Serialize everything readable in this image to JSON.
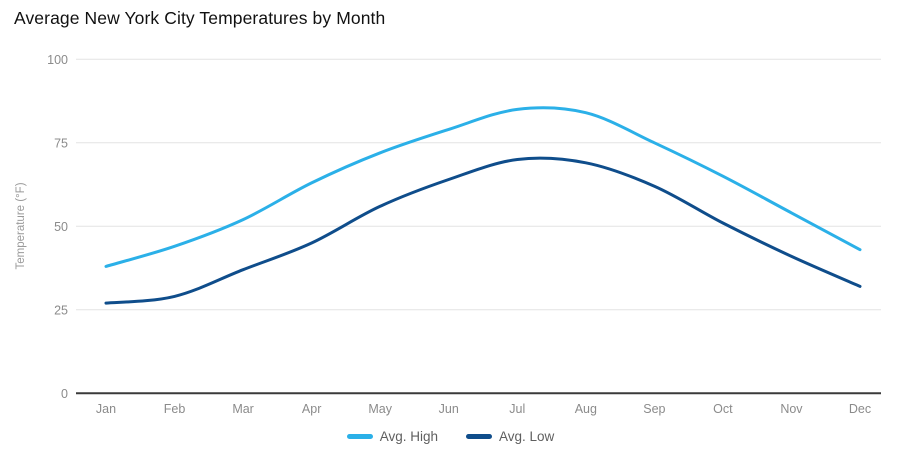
{
  "title": "Average New York City Temperatures by Month",
  "chart_data": {
    "type": "line",
    "title": "Average New York City Temperatures by Month",
    "xlabel": "",
    "ylabel": "Temperature (°F)",
    "categories": [
      "Jan",
      "Feb",
      "Mar",
      "Apr",
      "May",
      "Jun",
      "Jul",
      "Aug",
      "Sep",
      "Oct",
      "Nov",
      "Dec"
    ],
    "series": [
      {
        "name": "Avg. High",
        "color": "#2bb0e8",
        "values": [
          38,
          44,
          52,
          63,
          72,
          79,
          85,
          84,
          75,
          65,
          54,
          43
        ]
      },
      {
        "name": "Avg. Low",
        "color": "#0f4d8b",
        "values": [
          27,
          29,
          37,
          45,
          56,
          64,
          70,
          69,
          62,
          51,
          41,
          32
        ]
      }
    ],
    "ylim": [
      0,
      100
    ],
    "yticks": [
      0,
      25,
      50,
      75,
      100
    ],
    "grid": true,
    "smoothed": true,
    "legend_position": "bottom-center"
  },
  "colors": {
    "gridline": "#e4e4e4",
    "axis_line": "#3a3a3a",
    "tick_label": "#8b8b8b",
    "axis_title": "#9a9a9a",
    "legend_text": "#5f5f5f",
    "background": "#ffffff"
  }
}
